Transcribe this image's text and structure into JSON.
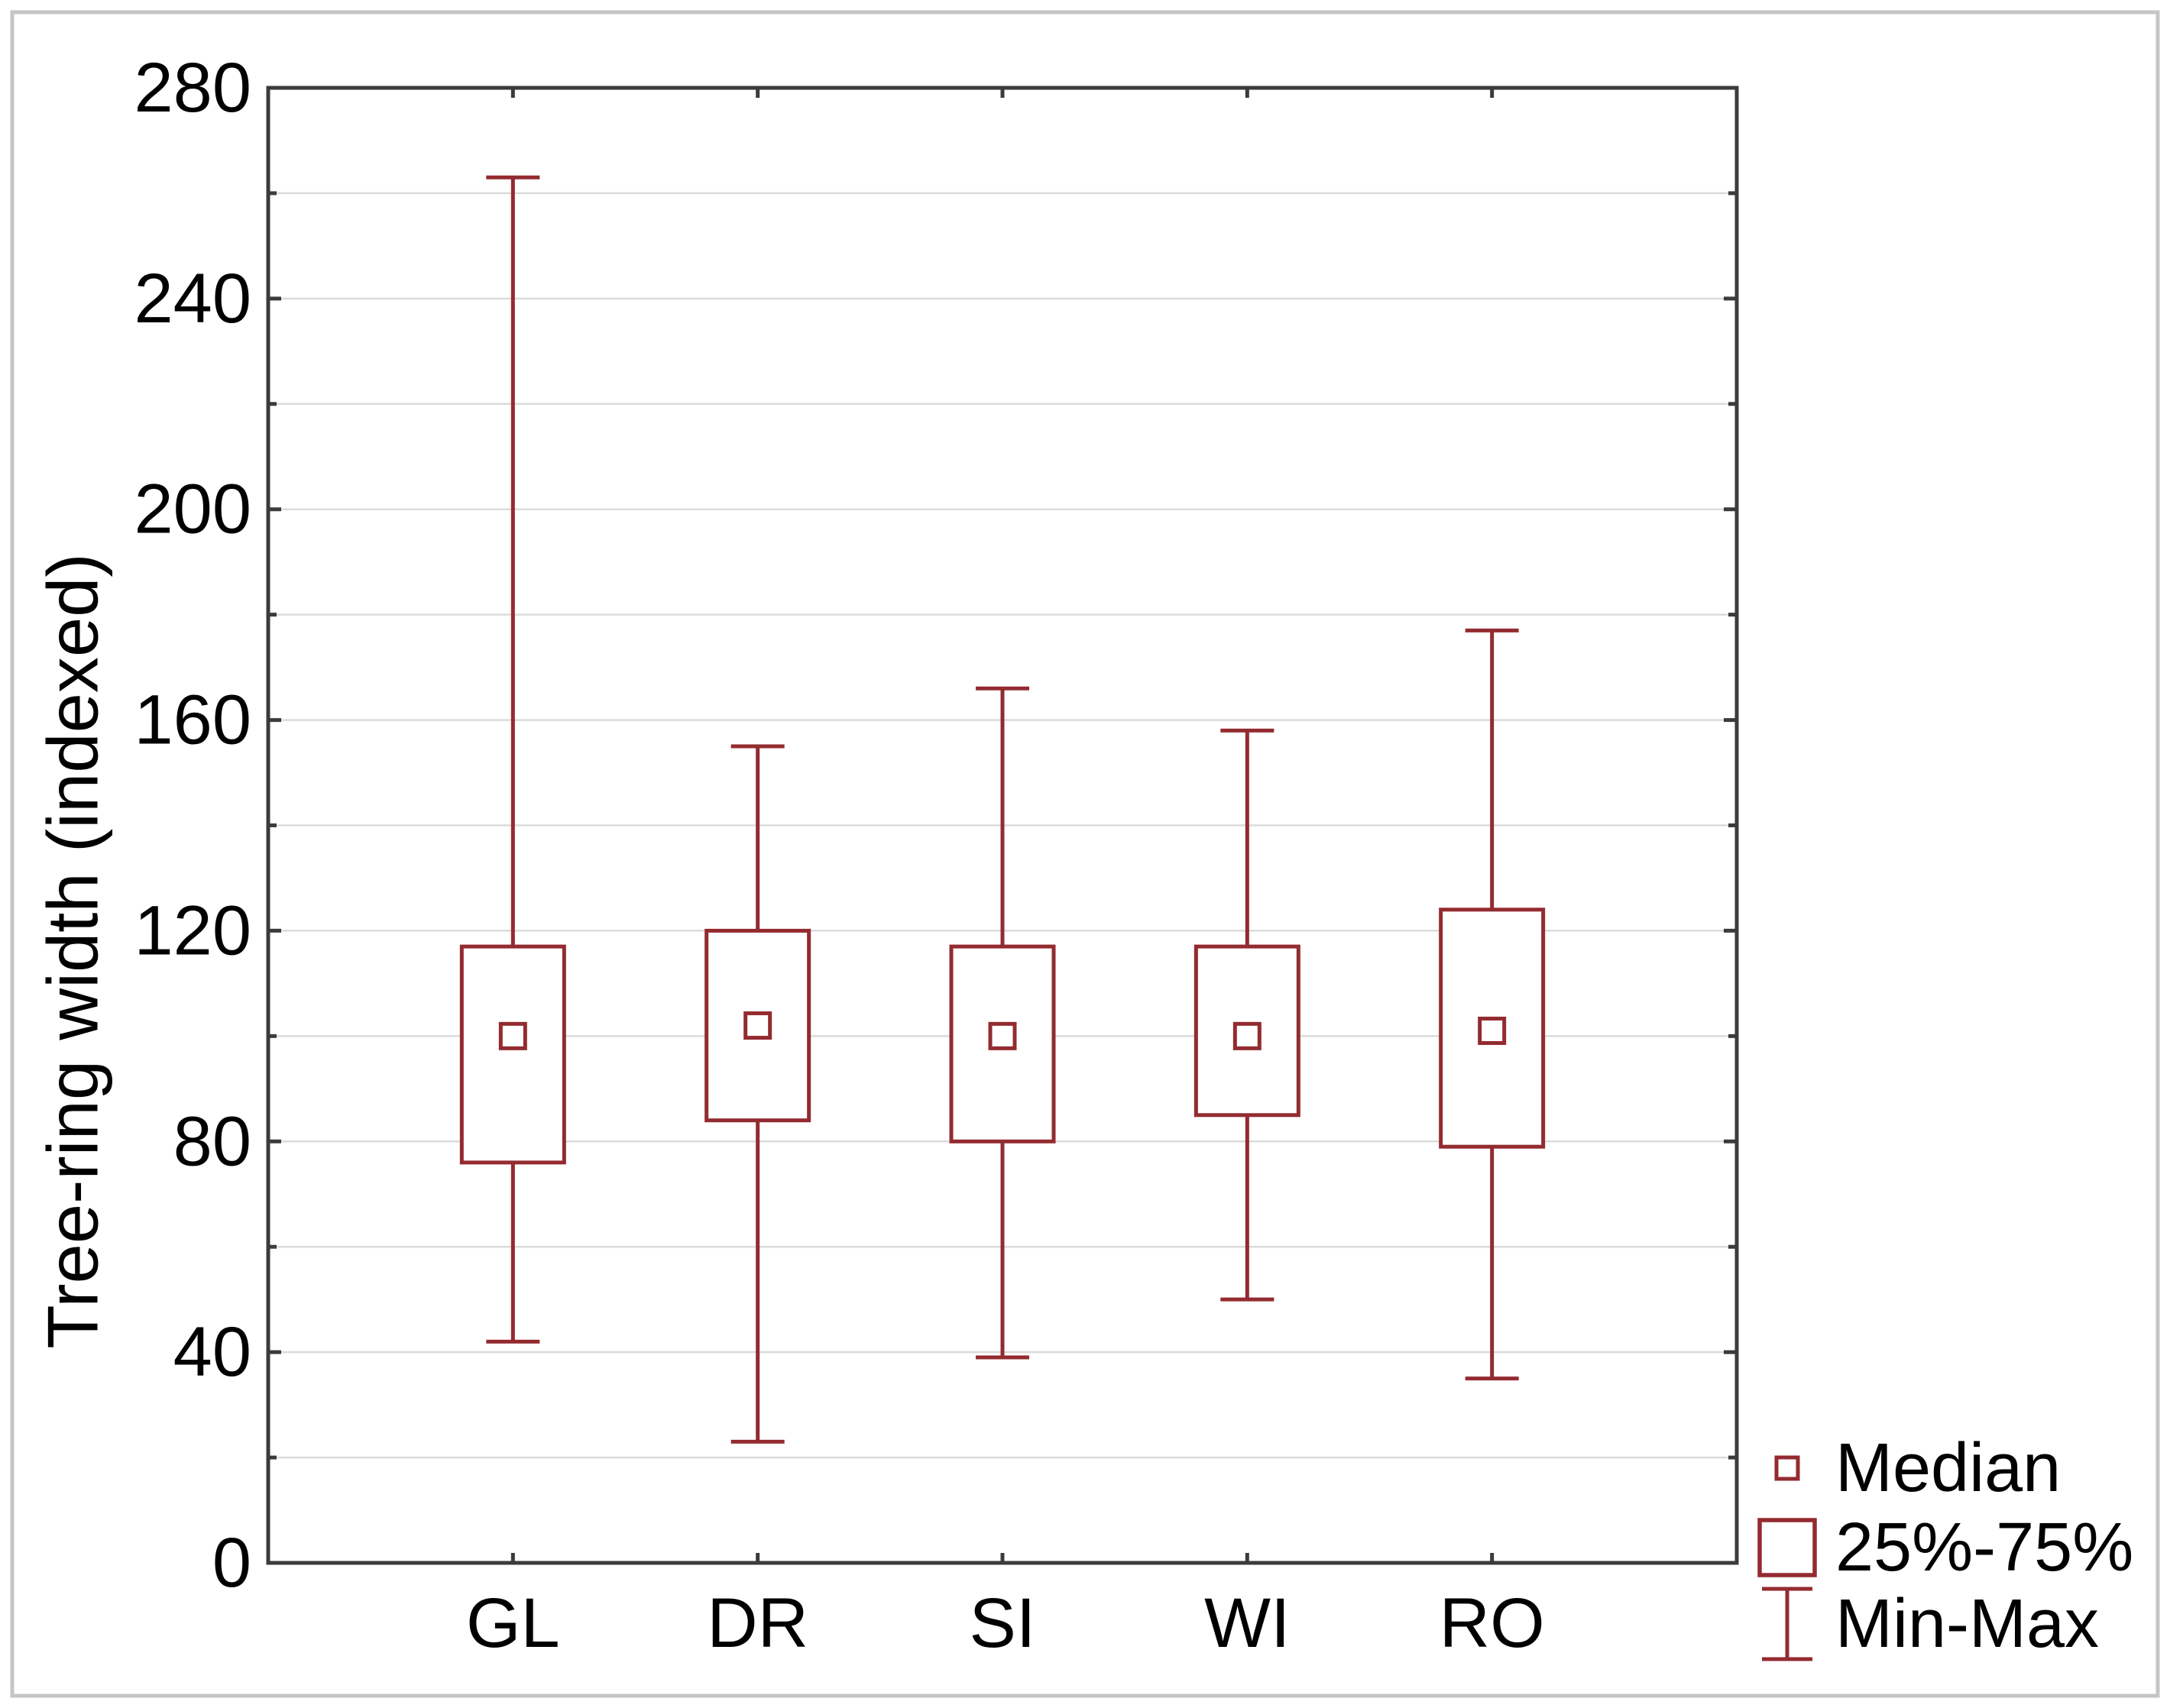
{
  "colors": {
    "series": "#932B30",
    "box_fill": "#FFFFFF",
    "grid": "#DBDBDB",
    "axis": "#3B3B3B",
    "text": "#000000",
    "outer_border": "#C5C5C5",
    "background": "#FFFFFF"
  },
  "y_axis": {
    "title": "Tree-ring width (indexed)",
    "major_ticks": [
      0,
      40,
      80,
      120,
      160,
      200,
      240,
      280
    ],
    "minor_step": 20,
    "range": [
      0,
      280
    ]
  },
  "x_axis": {
    "categories": [
      "GL",
      "DR",
      "SI",
      "WI",
      "RO"
    ]
  },
  "legend": {
    "position": "bottom-right",
    "items": [
      {
        "icon": "median-square-icon",
        "label": "Median"
      },
      {
        "icon": "iqr-box-icon",
        "label": "25%-75%"
      },
      {
        "icon": "min-max-whisker-icon",
        "label": "Min-Max"
      }
    ]
  },
  "chart_data": {
    "type": "boxplot",
    "title": "",
    "categories": [
      "GL",
      "DR",
      "SI",
      "WI",
      "RO"
    ],
    "series": [
      {
        "category": "GL",
        "min": 42,
        "q1": 76,
        "median": 100,
        "q3": 117,
        "max": 263
      },
      {
        "category": "DR",
        "min": 23,
        "q1": 84,
        "median": 102,
        "q3": 120,
        "max": 155
      },
      {
        "category": "SI",
        "min": 39,
        "q1": 80,
        "median": 100,
        "q3": 117,
        "max": 166
      },
      {
        "category": "WI",
        "min": 50,
        "q1": 85,
        "median": 100,
        "q3": 117,
        "max": 158
      },
      {
        "category": "RO",
        "min": 35,
        "q1": 79,
        "median": 101,
        "q3": 124,
        "max": 177
      }
    ],
    "xlabel": "",
    "ylabel": "Tree-ring width (indexed)",
    "ylim": [
      0,
      280
    ],
    "grid": true,
    "grid_step": 20,
    "whisker_definition": "min-max",
    "box_definition": "25th-75th percentile",
    "marker_definition": "median",
    "legend_position": "bottom-right"
  }
}
